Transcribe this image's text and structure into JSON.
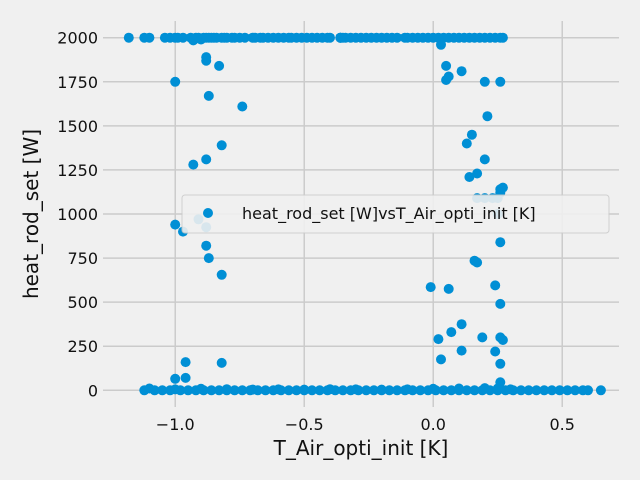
{
  "chart_data": {
    "type": "scatter",
    "title": "",
    "xlabel": "T_Air_opti_init [K]",
    "ylabel": "heat_rod_set [W]",
    "xlim": [
      -1.28,
      0.72
    ],
    "ylim": [
      -95,
      2095
    ],
    "grid": true,
    "legend": {
      "placement": "center-right"
    },
    "x_ticks": [
      -1.0,
      -0.5,
      0.0,
      0.5
    ],
    "x_tick_labels": [
      "−1.0",
      "−0.5",
      "0.0",
      "0.5"
    ],
    "y_ticks": [
      0,
      250,
      500,
      750,
      1000,
      1250,
      1500,
      1750,
      2000
    ],
    "y_tick_labels": [
      "0",
      "250",
      "500",
      "750",
      "1000",
      "1250",
      "1500",
      "1750",
      "2000"
    ],
    "colors": {
      "series": "#008fd5",
      "background": "#f0f0f0",
      "grid": "#cbcbcb"
    },
    "series": [
      {
        "name": "heat_rod_set [W]vsT_Air_opti_init [K]",
        "points": [
          [
            -1.18,
            2000
          ],
          [
            -1.12,
            2000
          ],
          [
            -1.1,
            2000
          ],
          [
            -1.04,
            2000
          ],
          [
            -1.02,
            2000
          ],
          [
            -1.0,
            2000
          ],
          [
            -0.99,
            2000
          ],
          [
            -0.97,
            2000
          ],
          [
            -0.94,
            2000
          ],
          [
            -0.93,
            1985
          ],
          [
            -0.92,
            2000
          ],
          [
            -0.91,
            2000
          ],
          [
            -0.9,
            1990
          ],
          [
            -0.89,
            2000
          ],
          [
            -0.88,
            2000
          ],
          [
            -0.87,
            2000
          ],
          [
            -0.86,
            2000
          ],
          [
            -0.85,
            2000
          ],
          [
            -0.84,
            2000
          ],
          [
            -0.82,
            2000
          ],
          [
            -0.81,
            2000
          ],
          [
            -0.8,
            2000
          ],
          [
            -0.78,
            2000
          ],
          [
            -0.77,
            2000
          ],
          [
            -0.75,
            2000
          ],
          [
            -0.73,
            2000
          ],
          [
            -0.7,
            2000
          ],
          [
            -0.69,
            2000
          ],
          [
            -0.67,
            2000
          ],
          [
            -0.66,
            2000
          ],
          [
            -0.64,
            2000
          ],
          [
            -0.62,
            2000
          ],
          [
            -0.6,
            2000
          ],
          [
            -0.58,
            2000
          ],
          [
            -0.56,
            2000
          ],
          [
            -0.55,
            2000
          ],
          [
            -0.53,
            2000
          ],
          [
            -0.51,
            2000
          ],
          [
            -0.49,
            2000
          ],
          [
            -0.47,
            2000
          ],
          [
            -0.45,
            2000
          ],
          [
            -0.43,
            2000
          ],
          [
            -0.41,
            2000
          ],
          [
            -0.4,
            2000
          ],
          [
            -0.36,
            2000
          ],
          [
            -0.35,
            2000
          ],
          [
            -0.36,
            2000
          ],
          [
            -0.36,
            2000
          ],
          [
            -0.34,
            2000
          ],
          [
            -0.32,
            2000
          ],
          [
            -0.3,
            2000
          ],
          [
            -0.28,
            2000
          ],
          [
            -0.26,
            2000
          ],
          [
            -0.24,
            2000
          ],
          [
            -0.22,
            2000
          ],
          [
            -0.2,
            2000
          ],
          [
            -0.18,
            2000
          ],
          [
            -0.16,
            2000
          ],
          [
            -0.14,
            2000
          ],
          [
            -0.11,
            2000
          ],
          [
            -0.1,
            2000
          ],
          [
            -0.08,
            2000
          ],
          [
            -0.06,
            2000
          ],
          [
            -0.04,
            2000
          ],
          [
            -0.02,
            2000
          ],
          [
            0.0,
            2000
          ],
          [
            0.02,
            2000
          ],
          [
            0.04,
            2000
          ],
          [
            0.06,
            2000
          ],
          [
            0.08,
            2000
          ],
          [
            0.1,
            2000
          ],
          [
            0.12,
            2000
          ],
          [
            0.14,
            2000
          ],
          [
            0.16,
            2000
          ],
          [
            0.18,
            2000
          ],
          [
            0.2,
            2000
          ],
          [
            0.22,
            2000
          ],
          [
            0.24,
            2000
          ],
          [
            0.26,
            2000
          ],
          [
            0.27,
            2000
          ],
          [
            -1.0,
            1750
          ],
          [
            -0.88,
            1890
          ],
          [
            -0.88,
            1870
          ],
          [
            -0.83,
            1840
          ],
          [
            -0.87,
            1670
          ],
          [
            -0.74,
            1610
          ],
          [
            -0.82,
            1390
          ],
          [
            -0.88,
            1310
          ],
          [
            -0.93,
            1280
          ],
          [
            -1.0,
            940
          ],
          [
            -0.97,
            900
          ],
          [
            -0.91,
            970
          ],
          [
            -0.88,
            925
          ],
          [
            -0.88,
            820
          ],
          [
            -0.87,
            750
          ],
          [
            -0.82,
            655
          ],
          [
            -0.96,
            160
          ],
          [
            -0.82,
            155
          ],
          [
            -1.0,
            65
          ],
          [
            -0.96,
            70
          ],
          [
            0.03,
            1960
          ],
          [
            0.05,
            1840
          ],
          [
            0.05,
            1760
          ],
          [
            0.06,
            1780
          ],
          [
            0.11,
            1810
          ],
          [
            0.2,
            1750
          ],
          [
            0.26,
            1750
          ],
          [
            0.21,
            1555
          ],
          [
            0.15,
            1450
          ],
          [
            0.13,
            1400
          ],
          [
            0.2,
            1310
          ],
          [
            0.17,
            1230
          ],
          [
            0.14,
            1210
          ],
          [
            0.26,
            1140
          ],
          [
            0.27,
            1150
          ],
          [
            0.17,
            1090
          ],
          [
            0.2,
            1090
          ],
          [
            0.23,
            1090
          ],
          [
            0.25,
            1090
          ],
          [
            0.26,
            1120
          ],
          [
            0.25,
            1000
          ],
          [
            0.26,
            840
          ],
          [
            0.16,
            735
          ],
          [
            0.17,
            725
          ],
          [
            0.24,
            595
          ],
          [
            -0.01,
            585
          ],
          [
            0.06,
            575
          ],
          [
            0.26,
            490
          ],
          [
            0.11,
            375
          ],
          [
            0.07,
            330
          ],
          [
            0.02,
            290
          ],
          [
            0.19,
            300
          ],
          [
            0.26,
            300
          ],
          [
            0.27,
            285
          ],
          [
            0.11,
            225
          ],
          [
            0.24,
            220
          ],
          [
            0.03,
            175
          ],
          [
            0.26,
            150
          ],
          [
            0.26,
            45
          ],
          [
            -1.12,
            0
          ],
          [
            -1.08,
            0
          ],
          [
            -1.05,
            0
          ],
          [
            -1.02,
            0
          ],
          [
            -0.98,
            0
          ],
          [
            -0.95,
            0
          ],
          [
            -0.92,
            0
          ],
          [
            -0.89,
            0
          ],
          [
            -0.86,
            0
          ],
          [
            -0.83,
            0
          ],
          [
            -0.8,
            0
          ],
          [
            -0.77,
            0
          ],
          [
            -0.74,
            0
          ],
          [
            -0.71,
            0
          ],
          [
            -0.68,
            0
          ],
          [
            -0.65,
            0
          ],
          [
            -0.62,
            0
          ],
          [
            -0.59,
            0
          ],
          [
            -0.56,
            0
          ],
          [
            -0.53,
            0
          ],
          [
            -0.5,
            0
          ],
          [
            -0.47,
            0
          ],
          [
            -0.44,
            0
          ],
          [
            -0.41,
            0
          ],
          [
            -0.38,
            0
          ],
          [
            -0.35,
            0
          ],
          [
            -0.32,
            0
          ],
          [
            -0.29,
            0
          ],
          [
            -0.26,
            0
          ],
          [
            -0.23,
            0
          ],
          [
            -0.2,
            0
          ],
          [
            -0.17,
            0
          ],
          [
            -0.14,
            0
          ],
          [
            -0.11,
            0
          ],
          [
            -0.08,
            0
          ],
          [
            -0.05,
            0
          ],
          [
            -0.02,
            0
          ],
          [
            0.01,
            0
          ],
          [
            0.04,
            0
          ],
          [
            0.07,
            0
          ],
          [
            0.1,
            0
          ],
          [
            0.13,
            0
          ],
          [
            0.16,
            0
          ],
          [
            0.19,
            0
          ],
          [
            0.22,
            0
          ],
          [
            0.25,
            0
          ],
          [
            0.28,
            0
          ],
          [
            0.31,
            0
          ],
          [
            0.34,
            0
          ],
          [
            0.37,
            0
          ],
          [
            0.4,
            0
          ],
          [
            0.43,
            0
          ],
          [
            0.46,
            0
          ],
          [
            0.49,
            0
          ],
          [
            0.52,
            0
          ],
          [
            0.55,
            0
          ],
          [
            0.58,
            0
          ],
          [
            0.6,
            0
          ],
          [
            0.65,
            0
          ],
          [
            -1.1,
            10
          ],
          [
            -1.0,
            5
          ],
          [
            -0.9,
            8
          ],
          [
            -0.8,
            6
          ],
          [
            -0.7,
            4
          ],
          [
            -0.6,
            5
          ],
          [
            -0.5,
            4
          ],
          [
            -0.4,
            6
          ],
          [
            -0.3,
            5
          ],
          [
            -0.2,
            4
          ],
          [
            -0.1,
            5
          ],
          [
            0.0,
            8
          ],
          [
            0.1,
            10
          ],
          [
            0.2,
            12
          ],
          [
            0.25,
            10
          ],
          [
            0.3,
            5
          ]
        ]
      }
    ]
  }
}
